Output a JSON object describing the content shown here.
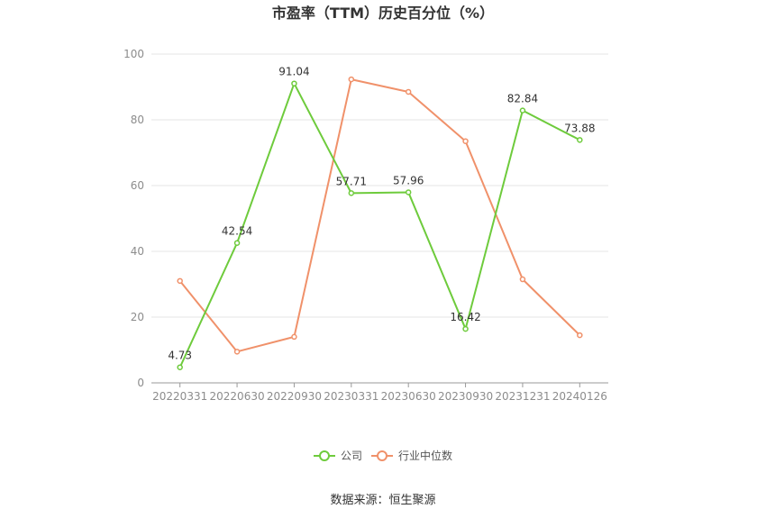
{
  "chart_data": {
    "type": "line",
    "title": "市盈率（TTM）历史百分位（%）",
    "categories": [
      "20220331",
      "20220630",
      "20220930",
      "20230331",
      "20230630",
      "20230930",
      "20231231",
      "20240126"
    ],
    "series": [
      {
        "name": "公司",
        "color": "#6ecb3c",
        "values": [
          4.73,
          42.54,
          91.04,
          57.71,
          57.96,
          16.42,
          82.84,
          73.88
        ],
        "labels": [
          "4.73",
          "42.54",
          "91.04",
          "57.71",
          "57.96",
          "16.42",
          "82.84",
          "73.88"
        ]
      },
      {
        "name": "行业中位数",
        "color": "#f0916a",
        "values": [
          31,
          9.5,
          14,
          92.3,
          88.5,
          73.5,
          31.5,
          14.5
        ]
      }
    ],
    "ylim": [
      0,
      100
    ],
    "yticks": [
      "0",
      "20",
      "40",
      "60",
      "80",
      "100"
    ],
    "grid": true,
    "legend_position": "bottom",
    "source": "数据来源：恒生聚源"
  }
}
